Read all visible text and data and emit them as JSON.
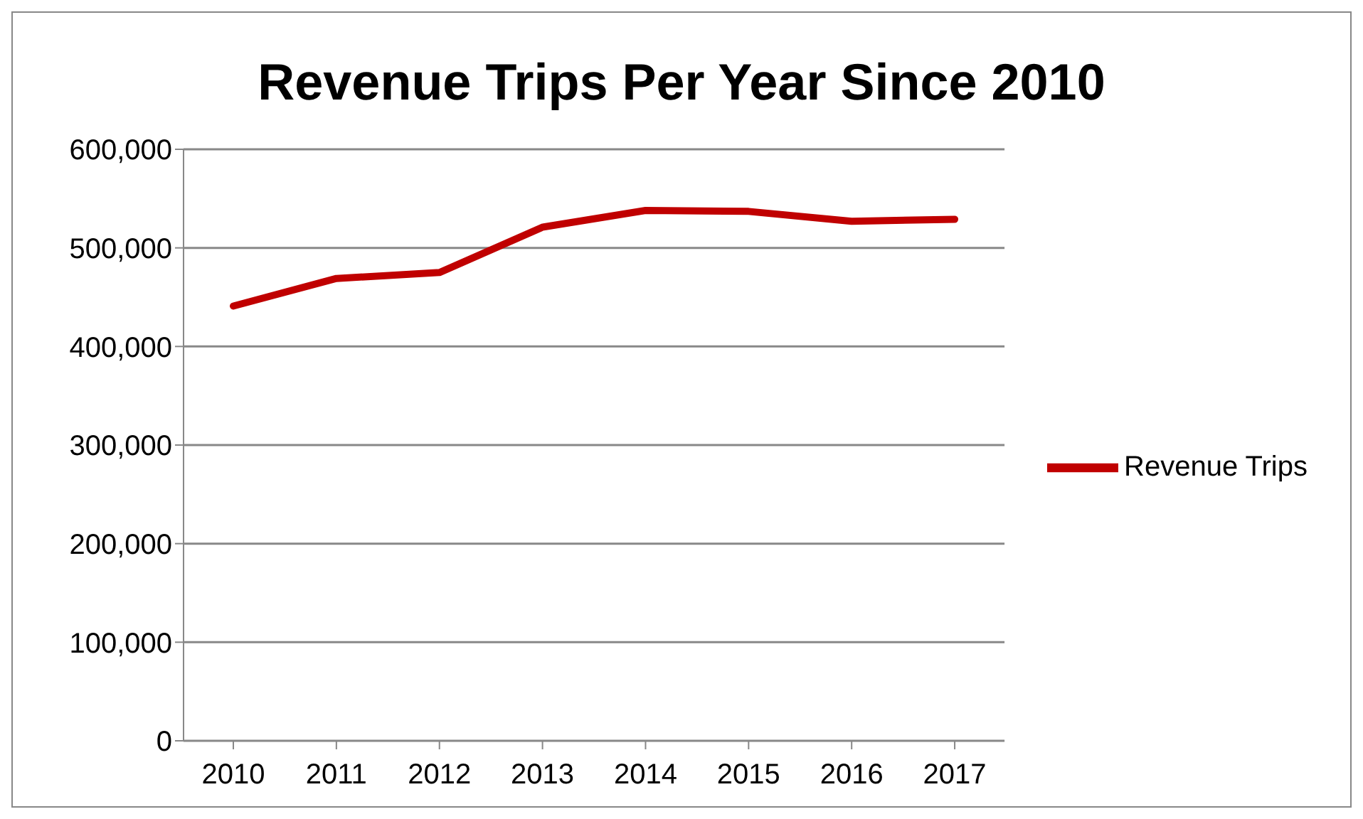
{
  "chart_data": {
    "type": "line",
    "title": "Revenue Trips Per Year Since 2010",
    "categories": [
      "2010",
      "2011",
      "2012",
      "2013",
      "2014",
      "2015",
      "2016",
      "2017"
    ],
    "series": [
      {
        "name": "Revenue Trips",
        "color": "#c00000",
        "values": [
          441000,
          469000,
          475000,
          521000,
          538000,
          537000,
          527000,
          529000
        ]
      }
    ],
    "ylim": [
      0,
      600000
    ],
    "yticks": [
      0,
      {
        "value": 100000,
        "label": "100,000"
      },
      {
        "value": 200000,
        "label": "200,000"
      },
      {
        "value": 300000,
        "label": "300,000"
      },
      {
        "value": 400000,
        "label": "400,000"
      },
      {
        "value": 500000,
        "label": "500,000"
      },
      {
        "value": 600000,
        "label": "600,000"
      }
    ],
    "grid": "y",
    "legend": "right",
    "marker": "none",
    "line_style": "solid"
  }
}
